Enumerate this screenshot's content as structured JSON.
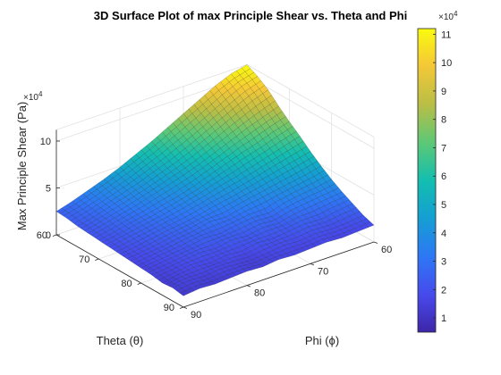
{
  "chart_data": {
    "type": "surface",
    "title": "3D Surface Plot of max Principle Shear vs. Theta and Phi",
    "xlabel": "Theta (θ)",
    "ylabel": "Phi (ϕ)",
    "zlabel": "Max Principle Shear (Pa)",
    "z_exponent_label": "×10",
    "z_exponent_power": "4",
    "theta_ticks": [
      "60",
      "70",
      "80",
      "90"
    ],
    "phi_ticks": [
      "90",
      "80",
      "70",
      "60"
    ],
    "z_ticks": [
      "0",
      "5",
      "10"
    ],
    "colorbar_ticks": [
      "1",
      "2",
      "3",
      "4",
      "5",
      "6",
      "7",
      "8",
      "9",
      "10",
      "11"
    ],
    "colorbar_exponent_label": "×10",
    "colorbar_exponent_power": "4",
    "theta_range": [
      60,
      90
    ],
    "phi_range": [
      60,
      90
    ],
    "z_range": [
      0,
      112000
    ],
    "clim": [
      5000,
      112000
    ],
    "colormap": "parula",
    "grid": true,
    "surface": {
      "theta": [
        90,
        87.5,
        85,
        82.5,
        80,
        77.5,
        75,
        72.5,
        70,
        67.5,
        65,
        62.5,
        60
      ],
      "phi": [
        90,
        87.5,
        85,
        82.5,
        80,
        77.5,
        75,
        72.5,
        70,
        67.5,
        65,
        62.5,
        60
      ],
      "z": [
        [
          12000,
          14000,
          13000,
          14000,
          15000,
          14000,
          16000,
          15000,
          16000,
          17000,
          16000,
          17000,
          18000
        ],
        [
          14000,
          16000,
          15000,
          17000,
          16000,
          15000,
          17000,
          19000,
          18000,
          20000,
          19000,
          20000,
          22000
        ],
        [
          13000,
          16000,
          18000,
          17000,
          19000,
          18000,
          21000,
          20000,
          22000,
          24000,
          23000,
          26000,
          28000
        ],
        [
          15000,
          17000,
          19000,
          21000,
          20000,
          23000,
          22000,
          25000,
          24000,
          28000,
          30000,
          32000,
          34000
        ],
        [
          16000,
          18000,
          20000,
          22000,
          25000,
          24000,
          27000,
          29000,
          28000,
          33000,
          36000,
          38000,
          41000
        ],
        [
          17000,
          19000,
          21000,
          24000,
          26000,
          30000,
          29000,
          33000,
          36000,
          39000,
          42000,
          45000,
          49000
        ],
        [
          18000,
          20000,
          23000,
          26000,
          28000,
          31000,
          35000,
          38000,
          42000,
          46000,
          50000,
          54000,
          58000
        ],
        [
          19000,
          22000,
          25000,
          28000,
          31000,
          35000,
          39000,
          44000,
          48000,
          53000,
          58000,
          63000,
          68000
        ],
        [
          20000,
          23000,
          27000,
          30000,
          34000,
          38000,
          43000,
          49000,
          55000,
          61000,
          66000,
          72000,
          77000
        ],
        [
          21000,
          25000,
          29000,
          33000,
          38000,
          43000,
          48000,
          54000,
          61000,
          68000,
          75000,
          81000,
          87000
        ],
        [
          22000,
          26000,
          31000,
          36000,
          41000,
          47000,
          53000,
          60000,
          68000,
          76000,
          84000,
          92000,
          98000
        ],
        [
          24000,
          28000,
          33000,
          39000,
          45000,
          52000,
          59000,
          67000,
          75000,
          84000,
          93000,
          101000,
          106000
        ],
        [
          25000,
          30000,
          36000,
          42000,
          49000,
          57000,
          65000,
          74000,
          83000,
          92000,
          101000,
          108000,
          112000
        ]
      ]
    }
  }
}
